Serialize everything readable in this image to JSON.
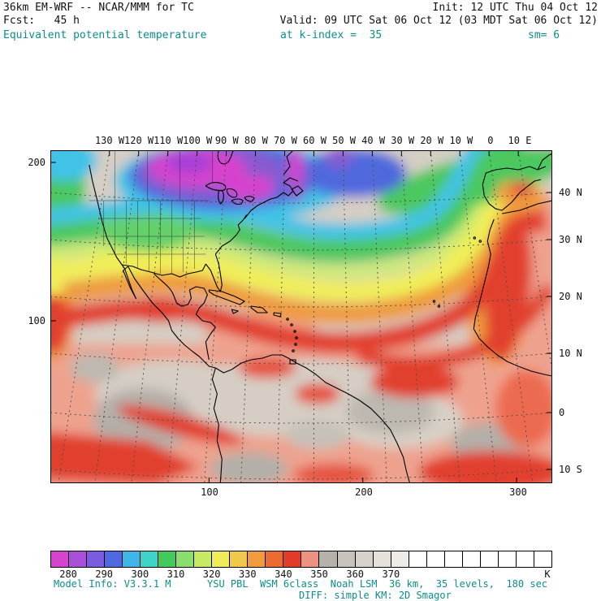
{
  "header": {
    "title_left": "36km EM-WRF -- NCAR/MMM for TC",
    "init": "Init: 12 UTC Thu 04 Oct 12",
    "fcst": "Fcst:   45 h",
    "valid": "Valid: 09 UTC Sat 06 Oct 12 (03 MDT Sat 06 Oct 12)",
    "field_name": "Equivalent potential temperature",
    "level_text": "at k-index =  35",
    "smoothing_text": "sm= 6",
    "accent_color": "#0d8c8c"
  },
  "map": {
    "top_ticks": [
      "130 W",
      "120 W",
      "110 W",
      "100 W",
      "90 W",
      "80 W",
      "70 W",
      "60 W",
      "50 W",
      "40 W",
      "30 W",
      "20 W",
      "10 W",
      "0",
      "10 E"
    ],
    "right_ticks": [
      "40 N",
      "30 N",
      "20 N",
      "10 N",
      "0",
      "10 S"
    ],
    "left_ticks": [
      "200",
      "100"
    ],
    "bottom_ticks": [
      "100",
      "200",
      "300"
    ]
  },
  "colorbar": {
    "unit": "K",
    "tick_labels": [
      "280",
      "290",
      "300",
      "310",
      "320",
      "330",
      "340",
      "350",
      "360",
      "370"
    ],
    "segment_colors": [
      "#d543cf",
      "#a94fd8",
      "#7b5ce0",
      "#4f68e0",
      "#3fb6e8",
      "#3fd4c8",
      "#44c95c",
      "#8ade6e",
      "#c8e964",
      "#f0ee58",
      "#f0c84b",
      "#ef9b3e",
      "#ea6c30",
      "#e23b2a",
      "#ef9180",
      "#b6b1aa",
      "#c7c2bb",
      "#d6d1c9",
      "#e4e0da",
      "#efece7",
      "#ffffff",
      "#ffffff",
      "#ffffff",
      "#ffffff",
      "#ffffff",
      "#ffffff",
      "#ffffff",
      "#ffffff"
    ]
  },
  "footer": {
    "model_info": "Model Info: V3.3.1 M",
    "physics": "YSU PBL  WSM 6class  Noah LSM  36 km,  35 levels,  180 sec",
    "diffusion": "DIFF: simple KM: 2D Smagor"
  },
  "chart_data": {
    "type": "heatmap",
    "title": "Equivalent potential temperature",
    "units": "K",
    "model": "36km EM-WRF -- NCAR/MMM for TC",
    "init_time": "12 UTC Thu 04 Oct 12",
    "valid_time": "09 UTC Sat 06 Oct 12 (03 MDT Sat 06 Oct 12)",
    "forecast_hour": 45,
    "level": "k-index = 35",
    "smoothing": "sm= 6",
    "colorbar": {
      "level_start_K": 275,
      "level_step_K": 5,
      "n_segments": 28,
      "labeled_ticks_K": [
        280,
        290,
        300,
        310,
        320,
        330,
        340,
        350,
        360,
        370
      ],
      "colors": [
        "#d543cf",
        "#a94fd8",
        "#7b5ce0",
        "#4f68e0",
        "#3fb6e8",
        "#3fd4c8",
        "#44c95c",
        "#8ade6e",
        "#c8e964",
        "#f0ee58",
        "#f0c84b",
        "#ef9b3e",
        "#ea6c30",
        "#e23b2a",
        "#ef9180",
        "#b6b1aa",
        "#c7c2bb",
        "#d6d1c9",
        "#e4e0da",
        "#efece7",
        "#ffffff",
        "#ffffff",
        "#ffffff",
        "#ffffff",
        "#ffffff",
        "#ffffff",
        "#ffffff",
        "#ffffff"
      ]
    },
    "x_axis": {
      "tick_labels": [
        "130 W",
        "120 W",
        "110 W",
        "100 W",
        "90 W",
        "80 W",
        "70 W",
        "60 W",
        "50 W",
        "40 W",
        "30 W",
        "20 W",
        "10 W",
        "0",
        "10 E"
      ],
      "grid_point_labels": [
        100,
        200,
        300
      ]
    },
    "y_axis": {
      "tick_labels": [
        "40 N",
        "30 N",
        "20 N",
        "10 N",
        "0",
        "10 S"
      ],
      "grid_point_labels": [
        200,
        100
      ]
    },
    "approx_field_K": {
      "lons_deg_east": [
        -130,
        -120,
        -110,
        -100,
        -90,
        -80,
        -70,
        -60,
        -50,
        -40,
        -30,
        -20,
        -10,
        0,
        10
      ],
      "lats_deg_north": [
        40,
        30,
        20,
        10,
        0,
        -10
      ],
      "values": [
        [
          310,
          296,
          286,
          281,
          283,
          290,
          296,
          302,
          300,
          304,
          308,
          305,
          308,
          312,
          318
        ],
        [
          334,
          322,
          312,
          304,
          300,
          306,
          312,
          318,
          320,
          322,
          326,
          330,
          335,
          342,
          348
        ],
        [
          344,
          348,
          342,
          336,
          332,
          336,
          340,
          342,
          344,
          342,
          340,
          342,
          346,
          350,
          352
        ],
        [
          350,
          352,
          356,
          352,
          348,
          350,
          352,
          350,
          348,
          350,
          352,
          350,
          346,
          342,
          340
        ],
        [
          344,
          348,
          352,
          354,
          350,
          346,
          350,
          354,
          356,
          352,
          348,
          344,
          342,
          340,
          338
        ],
        [
          342,
          338,
          344,
          348,
          352,
          350,
          346,
          342,
          340,
          338,
          336,
          334,
          332,
          330,
          328
        ]
      ]
    }
  }
}
